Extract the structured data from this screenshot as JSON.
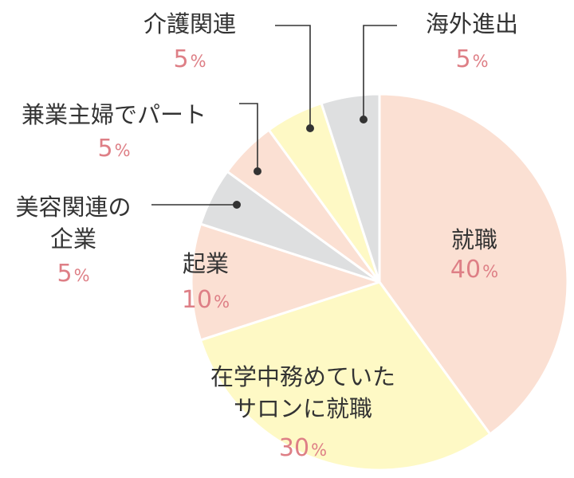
{
  "chart_data": {
    "type": "pie",
    "slices": [
      {
        "label_lines": [
          "就職"
        ],
        "value": 40,
        "display_value": "40",
        "unit": "%",
        "color": "#fbe0d3"
      },
      {
        "label_lines": [
          "在学中務めていた",
          "サロンに就職"
        ],
        "value": 30,
        "display_value": "30",
        "unit": "%",
        "color": "#fef9c5"
      },
      {
        "label_lines": [
          "起業"
        ],
        "value": 10,
        "display_value": "10",
        "unit": "%",
        "color": "#fbe0d3"
      },
      {
        "label_lines": [
          "美容関連の",
          "企業"
        ],
        "value": 5,
        "display_value": "5",
        "unit": "%",
        "color": "#dedfe0"
      },
      {
        "label_lines": [
          "兼業主婦でパート"
        ],
        "value": 5,
        "display_value": "5",
        "unit": "%",
        "color": "#fbe0d3"
      },
      {
        "label_lines": [
          "介護関連"
        ],
        "value": 5,
        "display_value": "5",
        "unit": "%",
        "color": "#fef9c5"
      },
      {
        "label_lines": [
          "海外進出"
        ],
        "value": 5,
        "display_value": "5",
        "unit": "%",
        "color": "#dedfe0"
      }
    ],
    "start": "12 o'clock",
    "direction": "clockwise",
    "slice_border_color": "#ffffff",
    "leader_color": "#333333",
    "label_color": "#333333",
    "value_color": "#de7f86"
  }
}
